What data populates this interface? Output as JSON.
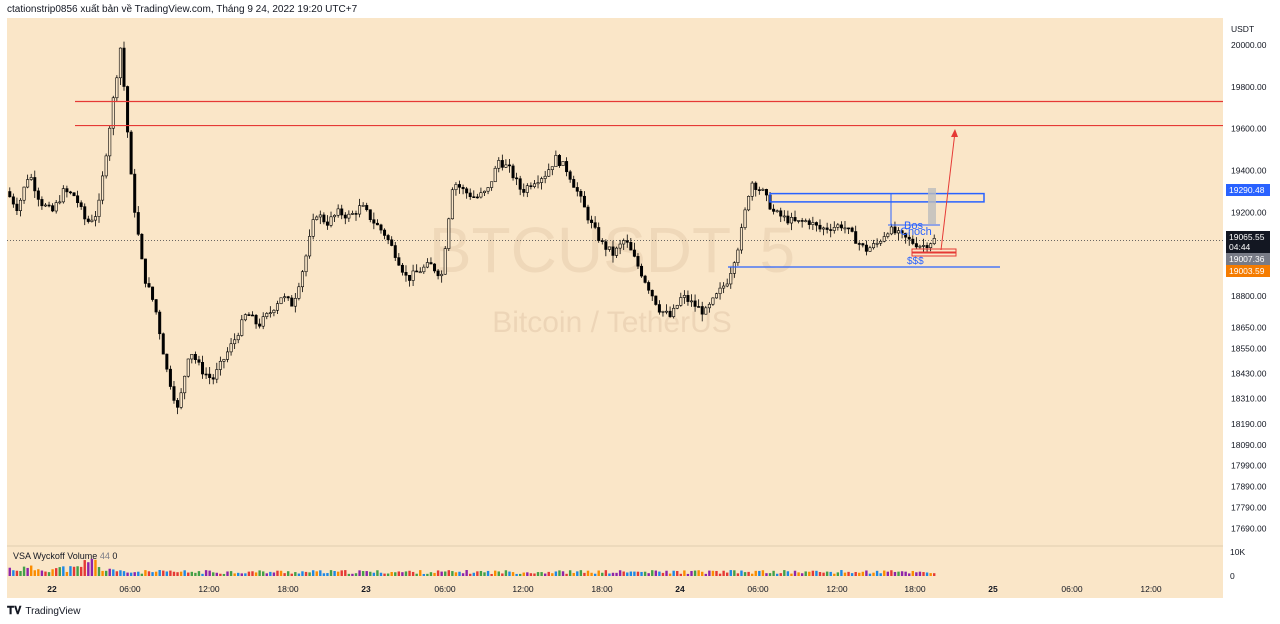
{
  "header": {
    "title": "ctationstrip0856 xuất bản về TradingView.com, Tháng 9 24, 2022 19:20 UTC+7"
  },
  "footer": {
    "brand": "TradingView",
    "logo": "tradingview-logo-icon"
  },
  "watermark": {
    "symbol": "BTCUSDT, 5",
    "description": "Bitcoin / TetherUS"
  },
  "indicator": {
    "name": "VSA Wyckoff Volume",
    "value1": "44",
    "value2": "0"
  },
  "annotations": {
    "bos": "Bos",
    "choch": "Choch",
    "liquidity": "$$$"
  },
  "colors": {
    "background": "#fae6c8",
    "candle": "#000000",
    "resistance": "#e53935",
    "zone": "#2962ff",
    "current_price_bg": "#131722",
    "last_close_bg": "#787b86",
    "alert_bg": "#f57c00"
  },
  "chart_data": {
    "type": "candlestick",
    "currency_label": "USDT",
    "ylim": [
      17600,
      20060
    ],
    "y_ticks": [
      "20000.00",
      "19800.00",
      "19600.00",
      "19400.00",
      "19200.00",
      "18800.00",
      "18650.00",
      "18550.00",
      "18430.00",
      "18310.00",
      "18190.00",
      "18090.00",
      "17990.00",
      "17890.00",
      "17790.00",
      "17690.00"
    ],
    "x_ticks": [
      "22",
      "06:00",
      "12:00",
      "18:00",
      "23",
      "06:00",
      "12:00",
      "18:00",
      "24",
      "06:00",
      "12:00",
      "18:00",
      "25",
      "06:00",
      "12:00"
    ],
    "price_labels": [
      {
        "value": "19290.48",
        "role": "zone_top",
        "color": "#2962ff"
      },
      {
        "value": "19065.55",
        "role": "current",
        "color": "#131722"
      },
      {
        "value": "04:44",
        "role": "countdown",
        "color": "#131722"
      },
      {
        "value": "19007.36",
        "role": "last",
        "color": "#787b86"
      },
      {
        "value": "19003.59",
        "role": "alert",
        "color": "#f57c00"
      }
    ],
    "horizontal_levels": [
      {
        "price": 19730,
        "color": "#e53935"
      },
      {
        "price": 19615,
        "color": "#e53935"
      }
    ],
    "zones": [
      {
        "price_top": 19290,
        "price_bottom": 19260,
        "color": "#2962ff"
      }
    ],
    "lines": [
      {
        "price": 18990,
        "color": "#2962ff"
      }
    ],
    "projection": {
      "from_price": 19060,
      "to_price": 19580,
      "color": "#e53935"
    },
    "close_path": [
      19300,
      19220,
      19390,
      19250,
      19200,
      19300,
      19280,
      19150,
      19200,
      19600,
      20000,
      19300,
      18900,
      18750,
      18450,
      18250,
      18550,
      18450,
      18400,
      18500,
      18600,
      18720,
      18660,
      18720,
      18800,
      18760,
      18950,
      19200,
      19150,
      19200,
      19180,
      19230,
      19160,
      19100,
      19000,
      18880,
      18920,
      18950,
      18900,
      19350,
      19300,
      19270,
      19300,
      19450,
      19400,
      19300,
      19350,
      19380,
      19460,
      19400,
      19280,
      19150,
      19050,
      19000,
      19070,
      18960,
      18850,
      18740,
      18700,
      18800,
      18760,
      18720,
      18800,
      18880,
      19060,
      19350,
      19300,
      19200,
      19170,
      19150,
      19160,
      19120,
      19130,
      19140,
      19080,
      19020,
      19050,
      19120,
      19090,
      19060,
      19040,
      19070
    ],
    "volume_max_label": "10K",
    "volume_min_label": "0"
  }
}
